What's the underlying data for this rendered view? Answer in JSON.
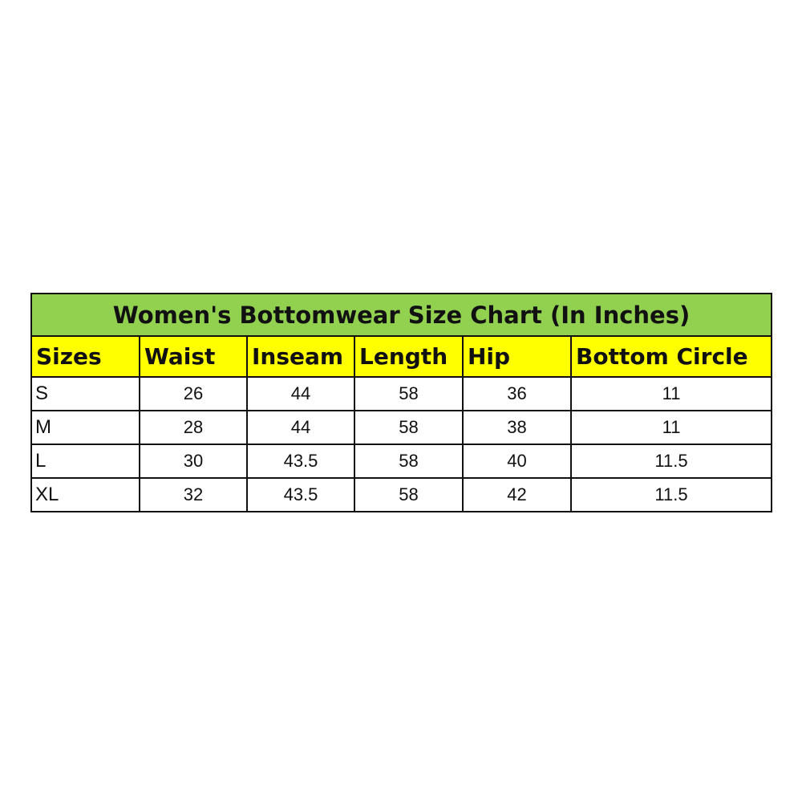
{
  "title": "Women's Bottomwear Size Chart (In Inches)",
  "colors": {
    "title_bg": "#92d050",
    "header_bg": "#ffff00",
    "border": "#111111"
  },
  "headers": [
    "Sizes",
    "Waist",
    "Inseam",
    "Length",
    "Hip",
    "Bottom Circle"
  ],
  "rows": [
    [
      "S",
      "26",
      "44",
      "58",
      "36",
      "11"
    ],
    [
      "M",
      "28",
      "44",
      "58",
      "38",
      "11"
    ],
    [
      "L",
      "30",
      "43.5",
      "58",
      "40",
      "11.5"
    ],
    [
      "XL",
      "32",
      "43.5",
      "58",
      "42",
      "11.5"
    ]
  ]
}
